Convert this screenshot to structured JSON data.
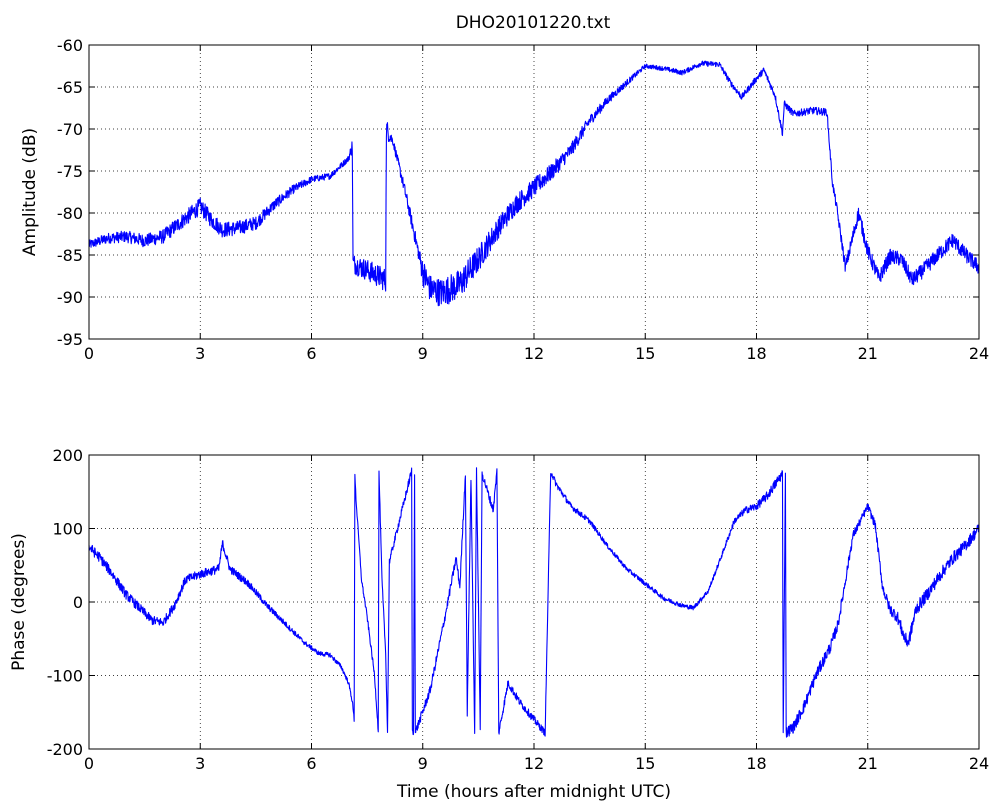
{
  "figure": {
    "title": "DHO20101220.txt",
    "line_color": "#0000ff"
  },
  "chart_data": [
    {
      "type": "line",
      "title": "DHO20101220.txt",
      "xlabel": "",
      "ylabel": "Amplitude (dB)",
      "xlim": [
        0,
        24
      ],
      "ylim": [
        -95,
        -60
      ],
      "xticks": [
        0,
        3,
        6,
        9,
        12,
        15,
        18,
        21,
        24
      ],
      "yticks": [
        -95,
        -90,
        -85,
        -80,
        -75,
        -70,
        -65,
        -60
      ],
      "grid": true,
      "series": [
        {
          "color": "#0000ff",
          "noise": [
            [
              0,
              0.55
            ],
            [
              3,
              1.0
            ],
            [
              4.5,
              0.8
            ],
            [
              6,
              0.4
            ],
            [
              7,
              0.35
            ],
            [
              7.15,
              1.2
            ],
            [
              8.0,
              1.4
            ],
            [
              8.2,
              0.5
            ],
            [
              8.9,
              0.9
            ],
            [
              9.0,
              1.6
            ],
            [
              10.0,
              1.8
            ],
            [
              11.0,
              1.3
            ],
            [
              12.5,
              1.0
            ],
            [
              14.0,
              0.5
            ],
            [
              15.0,
              0.25
            ],
            [
              18.7,
              0.4
            ],
            [
              19.9,
              0.45
            ],
            [
              20.05,
              0.5
            ],
            [
              20.5,
              0.8
            ],
            [
              21.0,
              0.9
            ],
            [
              24.0,
              0.9
            ]
          ],
          "points": [
            [
              0.0,
              -83.8
            ],
            [
              0.5,
              -83.0
            ],
            [
              1.0,
              -82.8
            ],
            [
              1.5,
              -83.3
            ],
            [
              2.0,
              -82.8
            ],
            [
              2.5,
              -81.0
            ],
            [
              3.0,
              -79.2
            ],
            [
              3.3,
              -80.8
            ],
            [
              3.6,
              -82.0
            ],
            [
              4.0,
              -81.8
            ],
            [
              4.5,
              -81.2
            ],
            [
              5.0,
              -79.0
            ],
            [
              5.5,
              -77.2
            ],
            [
              6.0,
              -76.0
            ],
            [
              6.5,
              -75.6
            ],
            [
              7.0,
              -73.5
            ],
            [
              7.1,
              -72.0
            ],
            [
              7.12,
              -86.0
            ],
            [
              7.5,
              -86.8
            ],
            [
              7.8,
              -87.5
            ],
            [
              8.0,
              -88.0
            ],
            [
              8.02,
              -70.0
            ],
            [
              8.2,
              -71.5
            ],
            [
              8.5,
              -77.0
            ],
            [
              8.8,
              -83.0
            ],
            [
              9.0,
              -87.0
            ],
            [
              9.2,
              -89.0
            ],
            [
              9.5,
              -89.5
            ],
            [
              10.0,
              -88.5
            ],
            [
              10.5,
              -85.5
            ],
            [
              11.0,
              -82.0
            ],
            [
              11.5,
              -79.0
            ],
            [
              12.0,
              -77.0
            ],
            [
              12.5,
              -75.0
            ],
            [
              13.0,
              -72.5
            ],
            [
              13.5,
              -69.0
            ],
            [
              14.0,
              -66.5
            ],
            [
              14.5,
              -64.5
            ],
            [
              15.0,
              -62.5
            ],
            [
              15.5,
              -62.8
            ],
            [
              16.0,
              -63.3
            ],
            [
              16.5,
              -62.2
            ],
            [
              17.0,
              -62.3
            ],
            [
              17.3,
              -64.5
            ],
            [
              17.6,
              -66.2
            ],
            [
              18.0,
              -64.0
            ],
            [
              18.2,
              -63.0
            ],
            [
              18.5,
              -66.0
            ],
            [
              18.7,
              -70.5
            ],
            [
              18.75,
              -67.0
            ],
            [
              19.0,
              -68.2
            ],
            [
              19.5,
              -67.8
            ],
            [
              19.9,
              -68.0
            ],
            [
              20.05,
              -76.5
            ],
            [
              20.15,
              -79.0
            ],
            [
              20.4,
              -86.5
            ],
            [
              20.6,
              -82.8
            ],
            [
              20.75,
              -80.0
            ],
            [
              21.0,
              -84.5
            ],
            [
              21.3,
              -87.8
            ],
            [
              21.6,
              -85.2
            ],
            [
              21.9,
              -85.5
            ],
            [
              22.2,
              -88.0
            ],
            [
              22.5,
              -86.8
            ],
            [
              23.0,
              -84.5
            ],
            [
              23.3,
              -83.2
            ],
            [
              23.6,
              -84.8
            ],
            [
              24.0,
              -86.5
            ]
          ]
        }
      ]
    },
    {
      "type": "line",
      "title": "",
      "xlabel": "Time (hours after midnight UTC)",
      "ylabel": "Phase (degrees)",
      "xlim": [
        0,
        24
      ],
      "ylim": [
        -200,
        200
      ],
      "xticks": [
        0,
        3,
        6,
        9,
        12,
        15,
        18,
        21,
        24
      ],
      "yticks": [
        -200,
        -100,
        0,
        100,
        200
      ],
      "grid": true,
      "series": [
        {
          "color": "#0000ff",
          "noise": [
            [
              0,
              7
            ],
            [
              2,
              6
            ],
            [
              3.5,
              6
            ],
            [
              5,
              4
            ],
            [
              6,
              3
            ],
            [
              7,
              3
            ],
            [
              9,
              6
            ],
            [
              12,
              5
            ],
            [
              14,
              3
            ],
            [
              17,
              3
            ],
            [
              19,
              8
            ],
            [
              20,
              8
            ],
            [
              21,
              5
            ],
            [
              22,
              9
            ],
            [
              24,
              8
            ]
          ],
          "points": [
            [
              0.0,
              75
            ],
            [
              0.3,
              60
            ],
            [
              0.6,
              40
            ],
            [
              1.0,
              10
            ],
            [
              1.4,
              -10
            ],
            [
              1.7,
              -25
            ],
            [
              2.0,
              -28
            ],
            [
              2.3,
              -5
            ],
            [
              2.6,
              30
            ],
            [
              3.0,
              38
            ],
            [
              3.5,
              45
            ],
            [
              3.6,
              80
            ],
            [
              3.8,
              45
            ],
            [
              4.3,
              25
            ],
            [
              4.8,
              -5
            ],
            [
              5.3,
              -30
            ],
            [
              5.8,
              -55
            ],
            [
              6.2,
              -70
            ],
            [
              6.5,
              -72
            ],
            [
              6.8,
              -88
            ],
            [
              7.0,
              -110
            ],
            [
              7.1,
              -135
            ],
            [
              7.15,
              -160
            ],
            [
              7.17,
              175
            ],
            [
              7.2,
              140
            ],
            [
              7.35,
              30
            ],
            [
              7.5,
              -20
            ],
            [
              7.7,
              -100
            ],
            [
              7.8,
              -175
            ],
            [
              7.82,
              178
            ],
            [
              7.9,
              30
            ],
            [
              8.0,
              -70
            ],
            [
              8.05,
              -178
            ],
            [
              8.1,
              55
            ],
            [
              8.7,
              178
            ],
            [
              8.72,
              -178
            ],
            [
              8.75,
              -178
            ],
            [
              8.78,
              178
            ],
            [
              8.8,
              -178
            ],
            [
              9.2,
              -120
            ],
            [
              9.6,
              -20
            ],
            [
              9.9,
              60
            ],
            [
              10.0,
              20
            ],
            [
              10.15,
              175
            ],
            [
              10.2,
              -150
            ],
            [
              10.3,
              170
            ],
            [
              10.4,
              -178
            ],
            [
              10.45,
              178
            ],
            [
              10.55,
              -170
            ],
            [
              10.6,
              175
            ],
            [
              10.9,
              125
            ],
            [
              11.0,
              178
            ],
            [
              11.05,
              -178
            ],
            [
              11.3,
              -110
            ],
            [
              11.6,
              -135
            ],
            [
              12.0,
              -160
            ],
            [
              12.3,
              -178
            ],
            [
              12.45,
              178
            ],
            [
              12.6,
              160
            ],
            [
              13.0,
              130
            ],
            [
              13.5,
              110
            ],
            [
              14.0,
              75
            ],
            [
              14.5,
              45
            ],
            [
              15.0,
              25
            ],
            [
              15.5,
              5
            ],
            [
              16.0,
              -5
            ],
            [
              16.3,
              -8
            ],
            [
              16.7,
              15
            ],
            [
              17.0,
              55
            ],
            [
              17.4,
              110
            ],
            [
              17.7,
              125
            ],
            [
              18.0,
              130
            ],
            [
              18.3,
              145
            ],
            [
              18.7,
              175
            ],
            [
              18.72,
              -178
            ],
            [
              18.78,
              178
            ],
            [
              18.8,
              -178
            ],
            [
              19.0,
              -170
            ],
            [
              19.3,
              -140
            ],
            [
              19.6,
              -100
            ],
            [
              20.0,
              -60
            ],
            [
              20.2,
              -30
            ],
            [
              20.4,
              30
            ],
            [
              20.6,
              90
            ],
            [
              20.9,
              120
            ],
            [
              21.0,
              130
            ],
            [
              21.2,
              105
            ],
            [
              21.4,
              20
            ],
            [
              21.6,
              -10
            ],
            [
              21.8,
              -20
            ],
            [
              22.0,
              -50
            ],
            [
              22.1,
              -55
            ],
            [
              22.3,
              -10
            ],
            [
              22.6,
              10
            ],
            [
              23.0,
              40
            ],
            [
              23.3,
              60
            ],
            [
              23.6,
              75
            ],
            [
              24.0,
              100
            ]
          ]
        }
      ]
    }
  ]
}
